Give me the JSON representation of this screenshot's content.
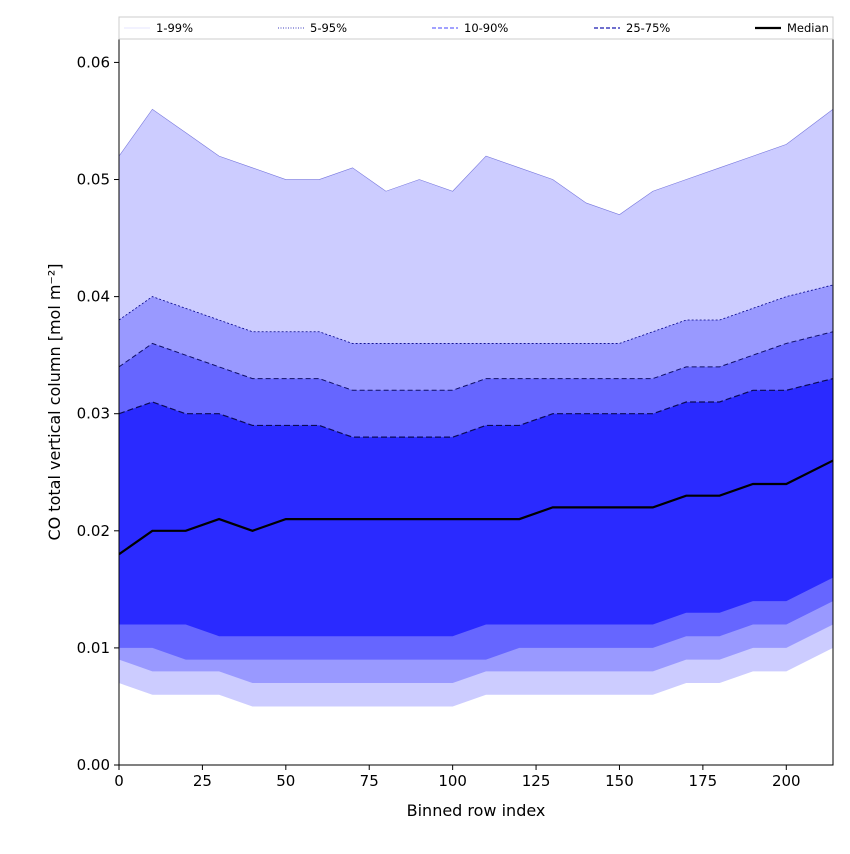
{
  "chart_data": {
    "type": "area",
    "xlabel": "Binned row index",
    "ylabel": "CO total vertical column [mol m⁻²]",
    "xlim": [
      0,
      214
    ],
    "ylim": [
      0,
      0.062
    ],
    "x_ticks": [
      0,
      25,
      50,
      75,
      100,
      125,
      150,
      175,
      200
    ],
    "y_ticks": [
      0.0,
      0.01,
      0.02,
      0.03,
      0.04,
      0.05,
      0.06
    ],
    "y_tick_labels": [
      "0.00",
      "0.01",
      "0.02",
      "0.03",
      "0.04",
      "0.05",
      "0.06"
    ],
    "x_tick_labels": [
      "0",
      "25",
      "50",
      "75",
      "100",
      "125",
      "150",
      "175",
      "200"
    ],
    "grid": false,
    "legend_position": "top",
    "legend": [
      {
        "label": "1-99%",
        "color": "#ddddff",
        "style": "thin-solid"
      },
      {
        "label": "5-95%",
        "color": "#0000aa",
        "style": "thin-dotted"
      },
      {
        "label": "10-90%",
        "color": "#6a6aff",
        "style": "dashed"
      },
      {
        "label": "25-75%",
        "color": "#1a1ab0",
        "style": "dashed"
      },
      {
        "label": "Median",
        "color": "#000000",
        "style": "solid"
      }
    ],
    "x": [
      0,
      10,
      20,
      30,
      40,
      50,
      60,
      70,
      80,
      90,
      100,
      110,
      120,
      130,
      140,
      150,
      160,
      170,
      180,
      190,
      200,
      214
    ],
    "series": [
      {
        "name": "1-99%",
        "color": "#ccccff",
        "upper": [
          0.052,
          0.056,
          0.054,
          0.052,
          0.051,
          0.05,
          0.05,
          0.051,
          0.049,
          0.05,
          0.049,
          0.052,
          0.051,
          0.05,
          0.048,
          0.047,
          0.049,
          0.05,
          0.051,
          0.052,
          0.053,
          0.056
        ],
        "lower": [
          0.007,
          0.006,
          0.006,
          0.006,
          0.005,
          0.005,
          0.005,
          0.005,
          0.005,
          0.005,
          0.005,
          0.006,
          0.006,
          0.006,
          0.006,
          0.006,
          0.006,
          0.007,
          0.007,
          0.008,
          0.008,
          0.01
        ]
      },
      {
        "name": "5-95%",
        "color": "#9999ff",
        "upper": [
          0.038,
          0.04,
          0.039,
          0.038,
          0.037,
          0.037,
          0.037,
          0.036,
          0.036,
          0.036,
          0.036,
          0.036,
          0.036,
          0.036,
          0.036,
          0.036,
          0.037,
          0.038,
          0.038,
          0.039,
          0.04,
          0.041
        ],
        "lower": [
          0.009,
          0.008,
          0.008,
          0.008,
          0.007,
          0.007,
          0.007,
          0.007,
          0.007,
          0.007,
          0.007,
          0.008,
          0.008,
          0.008,
          0.008,
          0.008,
          0.008,
          0.009,
          0.009,
          0.01,
          0.01,
          0.012
        ]
      },
      {
        "name": "10-90%",
        "color": "#6666ff",
        "upper": [
          0.034,
          0.036,
          0.035,
          0.034,
          0.033,
          0.033,
          0.033,
          0.032,
          0.032,
          0.032,
          0.032,
          0.033,
          0.033,
          0.033,
          0.033,
          0.033,
          0.033,
          0.034,
          0.034,
          0.035,
          0.036,
          0.037
        ],
        "lower": [
          0.01,
          0.01,
          0.009,
          0.009,
          0.009,
          0.009,
          0.009,
          0.009,
          0.009,
          0.009,
          0.009,
          0.009,
          0.01,
          0.01,
          0.01,
          0.01,
          0.01,
          0.011,
          0.011,
          0.012,
          0.012,
          0.014
        ]
      },
      {
        "name": "25-75%",
        "color": "#2a2aff",
        "upper": [
          0.03,
          0.031,
          0.03,
          0.03,
          0.029,
          0.029,
          0.029,
          0.028,
          0.028,
          0.028,
          0.028,
          0.029,
          0.029,
          0.03,
          0.03,
          0.03,
          0.03,
          0.031,
          0.031,
          0.032,
          0.032,
          0.033
        ],
        "lower": [
          0.012,
          0.012,
          0.012,
          0.011,
          0.011,
          0.011,
          0.011,
          0.011,
          0.011,
          0.011,
          0.011,
          0.012,
          0.012,
          0.012,
          0.012,
          0.012,
          0.012,
          0.013,
          0.013,
          0.014,
          0.014,
          0.016
        ]
      },
      {
        "name": "Median",
        "color": "#000000",
        "values": [
          0.018,
          0.02,
          0.02,
          0.021,
          0.02,
          0.021,
          0.021,
          0.021,
          0.021,
          0.021,
          0.021,
          0.021,
          0.021,
          0.022,
          0.022,
          0.022,
          0.022,
          0.023,
          0.023,
          0.024,
          0.024,
          0.026
        ]
      }
    ]
  }
}
